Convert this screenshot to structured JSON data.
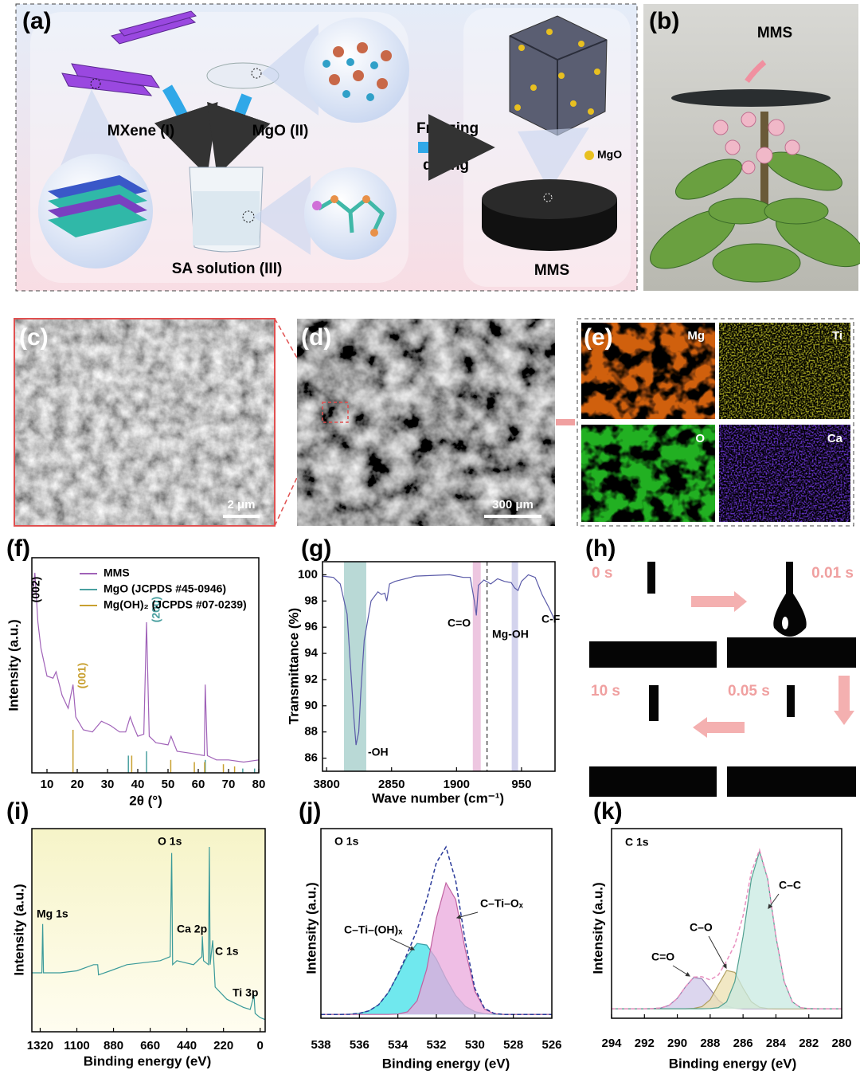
{
  "panels": {
    "a": {
      "label": "(a)",
      "texts": [
        "MXene (I)",
        "MgO (II)",
        "SA solution (III)",
        "Freezing",
        "drying",
        "MgO",
        "MMS"
      ]
    },
    "b": {
      "label": "(b)",
      "texts": [
        "MMS"
      ]
    },
    "c": {
      "label": "(c)",
      "scale": "2 μm"
    },
    "d": {
      "label": "(d)",
      "scale": "300 μm"
    },
    "e": {
      "label": "(e)",
      "maps": [
        "Mg",
        "Ti",
        "O",
        "Ca"
      ]
    },
    "h": {
      "label": "(h)",
      "times": [
        "0 s",
        "0.01 s",
        "10 s",
        "0.05 s"
      ]
    }
  },
  "chart_data": [
    {
      "type": "line",
      "label": "(f)",
      "x_label": "2θ (°)",
      "y_label": "Intensity (a.u.)",
      "xlim": [
        5,
        80
      ],
      "xticks": [
        10,
        20,
        30,
        40,
        50,
        60,
        70,
        80
      ],
      "ylim": [
        0,
        100
      ],
      "legend": "upper left",
      "annotations": [
        "(002)",
        "(001)",
        "(200)"
      ],
      "series": [
        {
          "name": "MMS",
          "color": "#a062b8",
          "x": [
            5,
            6,
            7,
            8,
            10,
            12,
            13,
            15,
            17,
            18.6,
            19.5,
            22,
            25,
            28,
            31,
            34,
            36,
            37.5,
            38.5,
            40,
            42,
            42.9,
            43.8,
            46,
            50,
            51,
            53,
            58,
            62,
            62.3,
            63,
            66,
            70,
            75,
            80
          ],
          "values": [
            80,
            93,
            70,
            58,
            45,
            44,
            47,
            36,
            30,
            41,
            26,
            20,
            19,
            24,
            22,
            19,
            19,
            26,
            22,
            17,
            18,
            70,
            17,
            14,
            13,
            17,
            10,
            9,
            8,
            41,
            8,
            6,
            6,
            5,
            6
          ]
        },
        {
          "name": "MgO (JCPDS #45-0946)",
          "color": "#4aa0a0",
          "stick": true,
          "x": [
            36.9,
            42.9,
            62.3,
            74.7,
            78.6
          ],
          "values": [
            8,
            10,
            6,
            2,
            2
          ]
        },
        {
          "name": "Mg(OH)₂ (JCPDS #07-0239)",
          "color": "#c8a030",
          "stick": true,
          "x": [
            18.6,
            38.0,
            50.9,
            58.7,
            62.1,
            68.3,
            72.0
          ],
          "values": [
            20,
            8,
            6,
            5,
            5,
            4,
            3
          ]
        }
      ]
    },
    {
      "type": "line",
      "label": "(g)",
      "x_label": "Wave number (cm⁻¹)",
      "y_label": "Transmittance (%)",
      "xlim": [
        3860,
        460
      ],
      "xticks": [
        3800,
        2850,
        1900,
        950
      ],
      "ylim": [
        85,
        101
      ],
      "yticks": [
        86,
        88,
        90,
        92,
        94,
        96,
        98,
        100
      ],
      "annotations": [
        "-OH",
        "C=O",
        "Mg-OH",
        "C-F"
      ],
      "bands": [
        {
          "from": 3546,
          "to": 3220,
          "color": "#a8d0cc"
        },
        {
          "from": 1662,
          "to": 1546,
          "color": "#e8b8d8"
        },
        {
          "from": 1093,
          "to": 1000,
          "color": "#c8c8e8"
        }
      ],
      "vline": 1453,
      "series": [
        {
          "color": "#5a5aa8",
          "x": [
            3860,
            3700,
            3600,
            3500,
            3450,
            3400,
            3370,
            3330,
            3300,
            3250,
            3150,
            3050,
            3000,
            2950,
            2920,
            2880,
            2800,
            2500,
            2000,
            1800,
            1700,
            1640,
            1610,
            1580,
            1500,
            1400,
            1300,
            1200,
            1100,
            1050,
            1000,
            950,
            850,
            750,
            650,
            550,
            460
          ],
          "values": [
            99.9,
            99.8,
            99.3,
            97,
            93,
            89,
            87,
            88,
            91,
            95,
            98,
            98.7,
            98.5,
            98.6,
            98,
            99.3,
            99.5,
            99.9,
            100,
            99.8,
            99.8,
            98,
            96.9,
            99.2,
            99.6,
            99.3,
            99.7,
            99.5,
            99.4,
            99,
            98.8,
            99.5,
            100,
            99.8,
            98.5,
            97.5,
            96.5
          ]
        }
      ]
    },
    {
      "type": "line",
      "label": "(i)",
      "x_label": "Binding energy (eV)",
      "y_label": "Intensity (a.u.)",
      "xlim": [
        1370,
        -30
      ],
      "xticks": [
        1320,
        1100,
        880,
        660,
        440,
        220,
        0
      ],
      "ylim": [
        0,
        100
      ],
      "annotations": [
        "Mg 1s",
        "O 1s",
        "Ca 2p",
        "C 1s",
        "Ti 3p"
      ],
      "x": [
        1370,
        1310,
        1305,
        1300,
        1200,
        1100,
        1000,
        975,
        970,
        900,
        800,
        700,
        600,
        540,
        531,
        525,
        500,
        400,
        350,
        347,
        340,
        310,
        305,
        300,
        285,
        270,
        200,
        100,
        60,
        37,
        30,
        0,
        -30
      ],
      "series": [
        {
          "color": "#3a9a9a",
          "values": [
            29,
            29,
            53,
            29,
            29,
            30,
            33,
            33,
            28,
            30,
            33,
            34,
            35,
            37,
            88,
            33,
            35,
            33,
            37,
            47,
            35,
            33,
            91,
            33,
            45,
            22,
            16,
            12,
            11,
            18,
            9,
            7,
            6
          ]
        }
      ]
    },
    {
      "type": "line",
      "label": "(j)",
      "x_label": "Binding energy (eV)",
      "y_label": "Intensity (a.u.)",
      "xlim": [
        538,
        526
      ],
      "xticks": [
        538,
        536,
        534,
        532,
        530,
        528,
        526
      ],
      "ylim": [
        0,
        100
      ],
      "annotations": [
        "O 1s"
      ],
      "x": [
        538,
        537.5,
        537,
        536.5,
        536,
        535.5,
        535,
        534.5,
        534,
        533.5,
        533,
        532.5,
        532,
        531.5,
        531,
        530.5,
        530,
        529.5,
        529,
        528.5,
        528,
        527.5,
        527,
        526.5,
        526
      ],
      "series": [
        {
          "name": "C–Ti–(OH)ₓ",
          "color": "#3aa0a8",
          "fill": "#40e0e8",
          "values": [
            2,
            2,
            2,
            2.1,
            2.6,
            3.9,
            7.1,
            13.5,
            22.9,
            33,
            39.4,
            38.6,
            31.2,
            20.9,
            12,
            6.3,
            3.5,
            2.4,
            2.1,
            2,
            2,
            2,
            2,
            2,
            2
          ]
        },
        {
          "name": "C–Ti–Oₓ",
          "color": "#c060a0",
          "fill": "#eaa8dc",
          "values": [
            2,
            2,
            2,
            2,
            2,
            2,
            2,
            2,
            2.2,
            3.4,
            9.2,
            25.9,
            52.8,
            71.4,
            62.7,
            36.1,
            14.3,
            4.8,
            2.4,
            2,
            2,
            2,
            2,
            2,
            2
          ]
        },
        {
          "color": "#2a3a9a",
          "dash": true,
          "values": [
            2,
            2,
            2,
            2.1,
            2.6,
            3.9,
            7.1,
            13.5,
            23.1,
            34.4,
            46.6,
            62.5,
            82,
            90.3,
            72.7,
            40.4,
            15.8,
            5.2,
            2.5,
            2,
            2,
            2,
            2,
            2,
            2
          ]
        }
      ]
    },
    {
      "type": "line",
      "label": "(k)",
      "x_label": "Binding energy (eV)",
      "y_label": "Intensity (a.u.)",
      "xlim": [
        294,
        280
      ],
      "xticks": [
        294,
        292,
        290,
        288,
        286,
        284,
        282,
        280
      ],
      "ylim": [
        0,
        100
      ],
      "annotations": [
        "C 1s"
      ],
      "x": [
        294,
        293.5,
        293,
        292.5,
        292,
        291.5,
        291,
        290.5,
        290,
        289.5,
        289,
        288.5,
        288,
        287.5,
        287,
        286.5,
        286,
        285.5,
        285,
        284.5,
        284,
        283.5,
        283,
        282.5,
        282,
        281.5,
        281,
        280.5,
        280
      ],
      "series": [
        {
          "name": "C=O",
          "color": "#9080b0",
          "fill": "#d0c8e8",
          "values": [
            5,
            5,
            5,
            5,
            5,
            5.1,
            5.4,
            6.8,
            10.5,
            16.6,
            21.5,
            20.8,
            15.3,
            9.5,
            6.4,
            5.3,
            5,
            5,
            5,
            5,
            5,
            5,
            5,
            5,
            5,
            5,
            5,
            5,
            5
          ]
        },
        {
          "name": "C–O",
          "color": "#b0a060",
          "fill": "#ece0b0",
          "values": [
            5,
            5,
            5,
            5,
            5,
            5,
            5,
            5,
            5,
            5,
            5.2,
            6.1,
            9.8,
            17.7,
            25.2,
            24.2,
            15.9,
            8.7,
            5.8,
            5.1,
            5,
            5,
            5,
            5,
            5,
            5,
            5,
            5,
            5
          ]
        },
        {
          "name": "C–C",
          "color": "#50a090",
          "fill": "#c8eae2",
          "values": [
            5,
            5,
            5,
            5,
            5,
            5,
            5,
            5,
            5,
            5,
            5,
            5,
            5.1,
            5.6,
            8.6,
            19.3,
            43,
            73.3,
            88,
            73.3,
            43,
            19.3,
            8.6,
            5.6,
            5.1,
            5,
            5,
            5,
            5
          ]
        },
        {
          "color": "#e890c0",
          "dash": true,
          "values": [
            5,
            5,
            5,
            5,
            5,
            5.1,
            5.4,
            6.8,
            10.5,
            16.6,
            21.7,
            21.9,
            20.2,
            22.8,
            30.2,
            38.8,
            53.9,
            77,
            88.8,
            73.4,
            43,
            19.3,
            8.6,
            5.6,
            5.1,
            5,
            5,
            5,
            5
          ]
        }
      ]
    }
  ]
}
